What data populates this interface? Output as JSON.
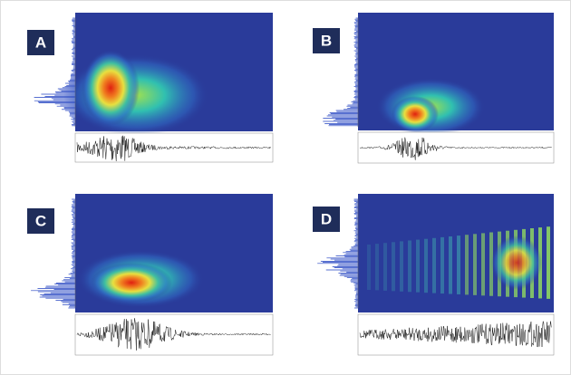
{
  "panels": [
    {
      "label": "A"
    },
    {
      "label": "B"
    },
    {
      "label": "C"
    },
    {
      "label": "D"
    }
  ]
}
